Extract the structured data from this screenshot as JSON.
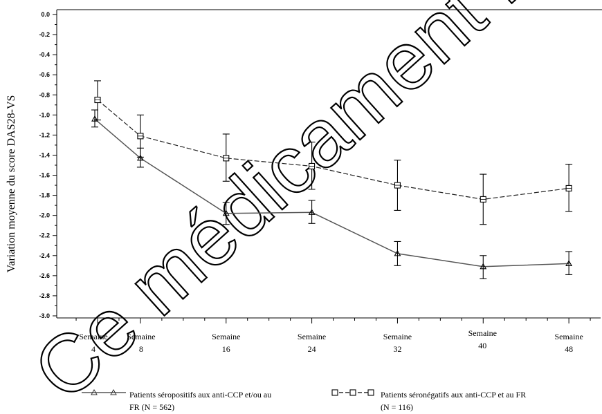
{
  "chart_data": {
    "type": "line",
    "ylabel": "Variation moyenne du score DAS28-VS",
    "ylim": [
      -3.0,
      0.0
    ],
    "yticks": [
      "0.0",
      "-0.2",
      "-0.4",
      "-0.6",
      "-0.8",
      "-1.0",
      "-1.2",
      "-1.4",
      "-1.6",
      "-1.8",
      "-2.0",
      "-2.2",
      "-2.4",
      "-2.6",
      "-2.8",
      "-3.0"
    ],
    "weeks": [
      4,
      8,
      16,
      24,
      32,
      40,
      48
    ],
    "categories": [
      {
        "line1": "Semaine",
        "line2": "4"
      },
      {
        "line1": "Semaine",
        "line2": "8"
      },
      {
        "line1": "Semaine",
        "line2": "16"
      },
      {
        "line1": "Semaine",
        "line2": "24"
      },
      {
        "line1": "Semaine",
        "line2": "32"
      },
      {
        "line1": "Semaine",
        "line2": "40"
      },
      {
        "line1": "Semaine",
        "line2": "48"
      }
    ],
    "series": [
      {
        "name_line1": "Patients séropositifs aux anti-CCP et/ou au",
        "name_line2": "FR (N = 562)",
        "marker": "triangle",
        "style": "solid",
        "values": [
          -1.04,
          -1.43,
          -1.98,
          -1.97,
          -2.38,
          -2.51,
          -2.48
        ],
        "error_low": [
          -1.12,
          -1.52,
          -2.09,
          -2.08,
          -2.5,
          -2.63,
          -2.59
        ],
        "error_high": [
          -0.95,
          -1.33,
          -1.87,
          -1.85,
          -2.26,
          -2.4,
          -2.36
        ]
      },
      {
        "name_line1": "Patients séronégatifs aux anti-CCP et au FR",
        "name_line2": "(N = 116)",
        "marker": "square",
        "style": "dashed",
        "values": [
          -0.85,
          -1.21,
          -1.43,
          -1.51,
          -1.7,
          -1.84,
          -1.73
        ],
        "error_low": [
          -1.05,
          -1.42,
          -1.66,
          -1.74,
          -1.95,
          -2.09,
          -1.96
        ],
        "error_high": [
          -0.66,
          -1.0,
          -1.19,
          -1.27,
          -1.45,
          -1.59,
          -1.49
        ]
      }
    ]
  },
  "watermark": "Ce médicament n'est"
}
